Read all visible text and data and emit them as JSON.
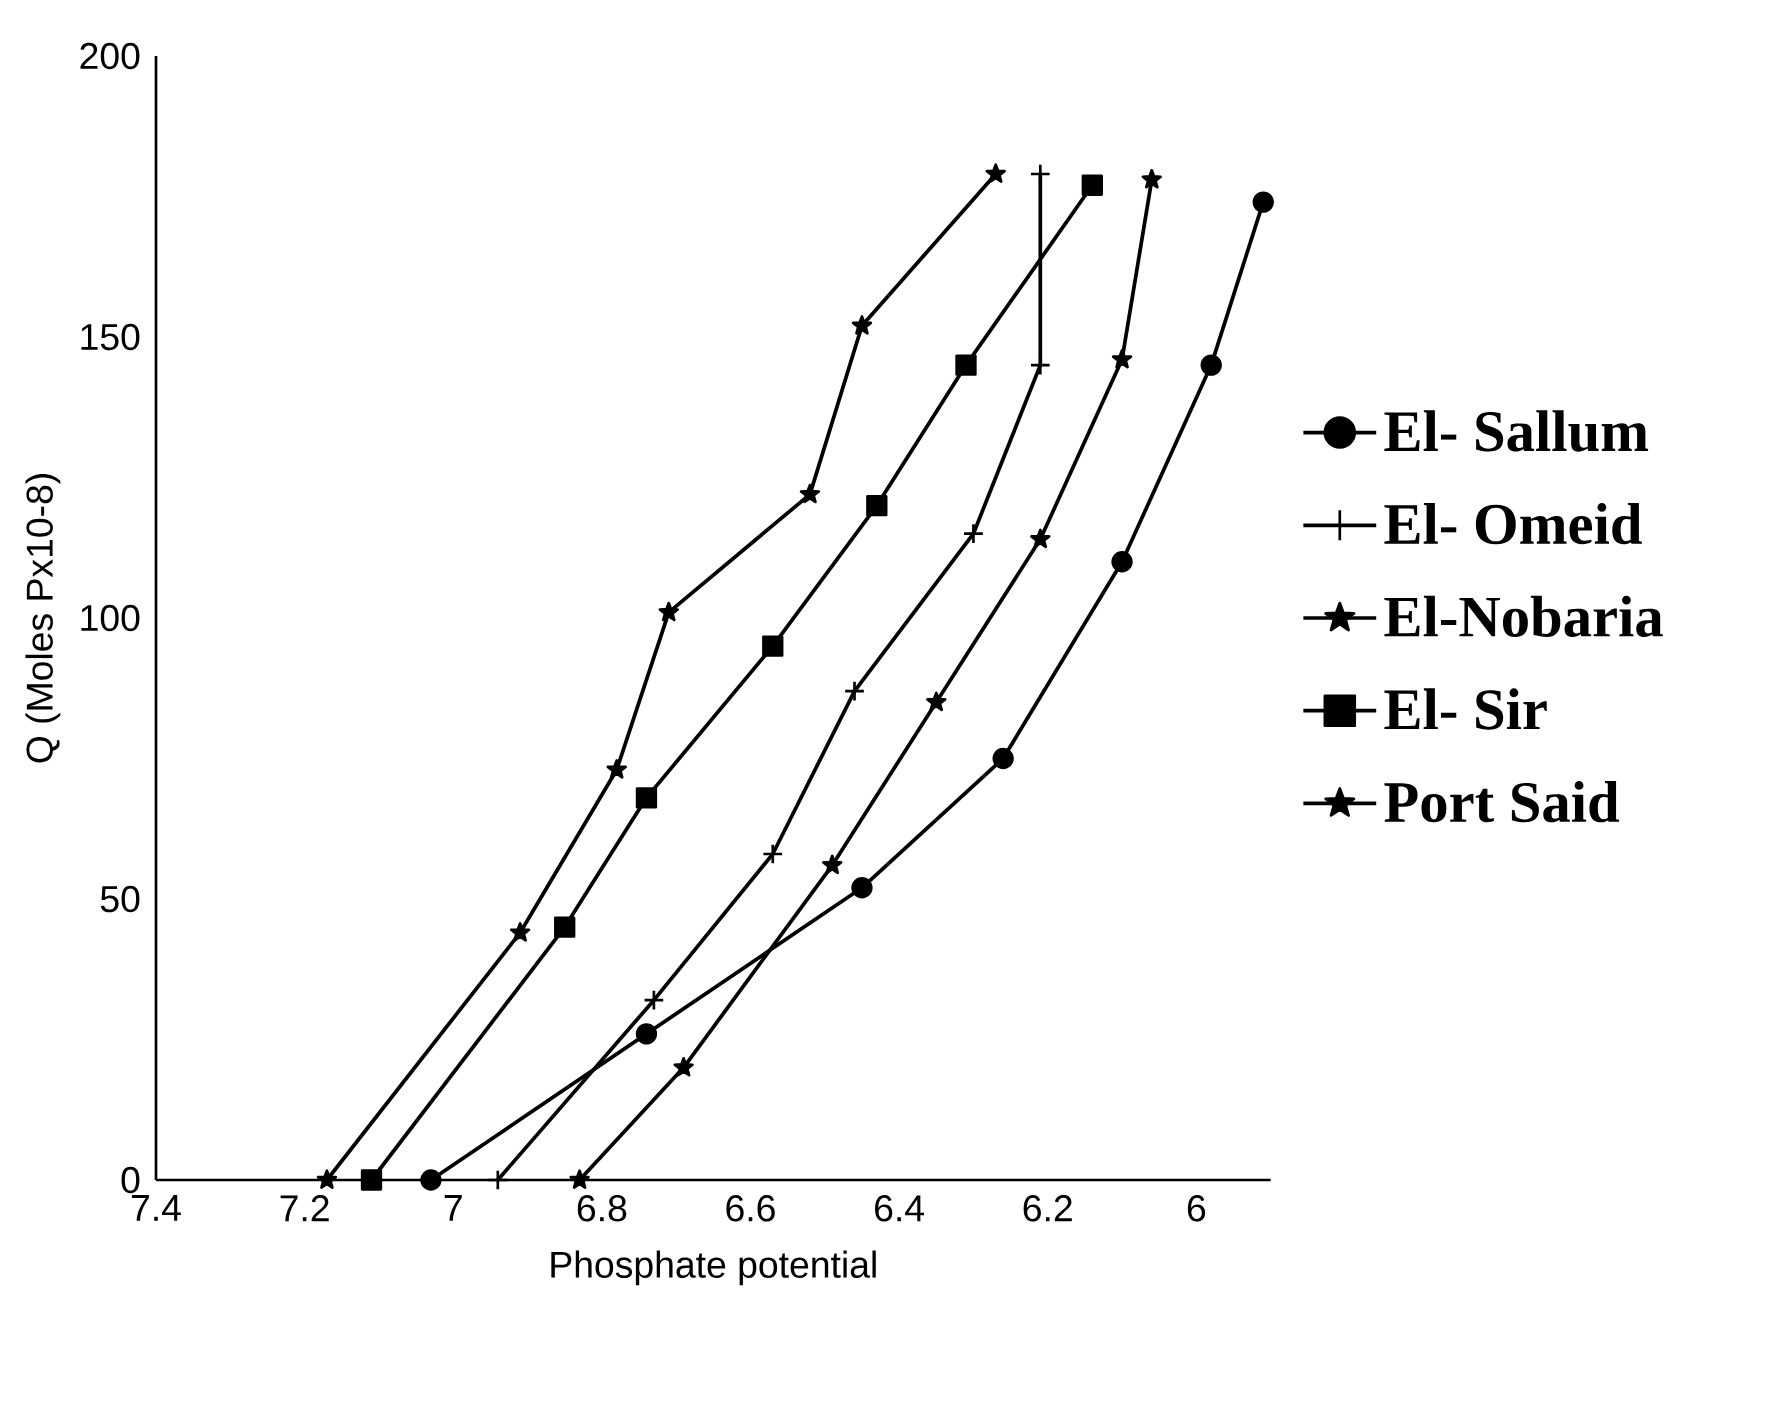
{
  "chart_data": {
    "type": "line",
    "xlabel": "Phosphate potential",
    "ylabel": "Q (Moles Px10-8)",
    "xlim": [
      7.4,
      5.9
    ],
    "ylim": [
      0,
      200
    ],
    "xticks": [
      7.4,
      7.2,
      7,
      6.8,
      6.6,
      6.4,
      6.2,
      6
    ],
    "yticks": [
      0,
      50,
      100,
      150,
      200
    ],
    "grid": false,
    "legend": "right",
    "line_style": "solid",
    "series": [
      {
        "name": "El- Sallum",
        "color": "#000000",
        "marker": "circle",
        "x": [
          7.03,
          6.74,
          6.45,
          6.26,
          6.1,
          5.98,
          5.91
        ],
        "values": [
          0,
          26,
          52,
          75,
          110,
          145,
          174
        ]
      },
      {
        "name": "El- Omeid",
        "color": "#000000",
        "marker": "cross",
        "x": [
          6.94,
          6.73,
          6.57,
          6.46,
          6.3,
          6.21,
          6.21
        ],
        "values": [
          0,
          32,
          58,
          87,
          115,
          145,
          179
        ]
      },
      {
        "name": "El-Nobaria",
        "color": "#000000",
        "marker": "star",
        "x": [
          6.83,
          6.69,
          6.49,
          6.35,
          6.21,
          6.1,
          6.06
        ],
        "values": [
          0,
          20,
          56,
          85,
          114,
          146,
          178
        ]
      },
      {
        "name": "El- Sir",
        "color": "#000000",
        "marker": "square",
        "x": [
          7.11,
          6.85,
          6.74,
          6.57,
          6.43,
          6.31,
          6.14
        ],
        "values": [
          0,
          45,
          68,
          95,
          120,
          145,
          177
        ]
      },
      {
        "name": "Port Said",
        "color": "#000000",
        "marker": "star",
        "x": [
          7.17,
          6.91,
          6.78,
          6.71,
          6.52,
          6.45,
          6.27
        ],
        "values": [
          0,
          44,
          73,
          101,
          122,
          152,
          179
        ]
      }
    ]
  }
}
